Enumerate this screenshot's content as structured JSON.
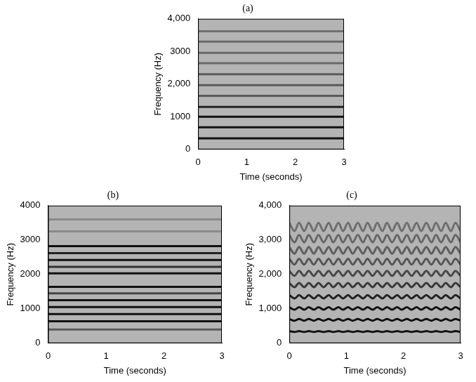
{
  "chart_data": [
    {
      "type": "line",
      "title": "(a)",
      "xlabel": "Time (seconds)",
      "ylabel": "Frequency (Hz)",
      "xlim": [
        0,
        3
      ],
      "xticks": [
        0,
        1,
        2,
        3
      ],
      "ylim": [
        0,
        4000
      ],
      "yticks": [
        0,
        1000,
        {
          "value": 2000,
          "label": "2,000"
        },
        3000,
        {
          "value": 4000,
          "label": "4,000"
        }
      ],
      "grid": false,
      "x": [
        0,
        3
      ],
      "series": [
        {
          "color": "#111111",
          "values": [
            340,
            340
          ]
        },
        {
          "color": "#111111",
          "values": [
            680,
            680
          ]
        },
        {
          "color": "#111111",
          "values": [
            1000,
            1000
          ]
        },
        {
          "color": "#222222",
          "values": [
            1300,
            1300
          ]
        },
        {
          "color": "#5a5a5a",
          "values": [
            1640,
            1640
          ]
        },
        {
          "color": "#5a5a5a",
          "values": [
            1970,
            1970
          ]
        },
        {
          "color": "#5a5a5a",
          "values": [
            2300,
            2300
          ]
        },
        {
          "color": "#6a6a6a",
          "values": [
            2640,
            2640
          ]
        },
        {
          "color": "#6a6a6a",
          "values": [
            2960,
            2960
          ]
        },
        {
          "color": "#6a6a6a",
          "values": [
            3300,
            3300
          ]
        },
        {
          "color": "#707070",
          "values": [
            3620,
            3620
          ]
        }
      ]
    },
    {
      "type": "line",
      "title": "(b)",
      "xlabel": "Time (seconds)",
      "ylabel": "Frequency (Hz)",
      "xlim": [
        0,
        3
      ],
      "xticks": [
        0,
        1,
        2,
        3
      ],
      "ylim": [
        0,
        4000
      ],
      "yticks": [
        0,
        1000,
        2000,
        3000,
        4000
      ],
      "grid": false,
      "x": [
        0,
        3
      ],
      "series": [
        {
          "color": "#5a5a5a",
          "values": [
            400,
            400
          ]
        },
        {
          "color": "#111111",
          "values": [
            640,
            640
          ]
        },
        {
          "color": "#111111",
          "values": [
            850,
            850
          ]
        },
        {
          "color": "#111111",
          "values": [
            1050,
            1050
          ]
        },
        {
          "color": "#111111",
          "values": [
            1250,
            1250
          ]
        },
        {
          "color": "#444444",
          "values": [
            1450,
            1450
          ]
        },
        {
          "color": "#111111",
          "values": [
            1640,
            1640
          ]
        },
        {
          "color": "#111111",
          "values": [
            2030,
            2030
          ]
        },
        {
          "color": "#333333",
          "values": [
            2220,
            2220
          ]
        },
        {
          "color": "#111111",
          "values": [
            2420,
            2420
          ]
        },
        {
          "color": "#222222",
          "values": [
            2620,
            2620
          ]
        },
        {
          "color": "#111111",
          "values": [
            2820,
            2820
          ]
        },
        {
          "color": "#8a8a8a",
          "values": [
            3250,
            3250
          ]
        },
        {
          "color": "#8a8a8a",
          "values": [
            3600,
            3600
          ]
        }
      ]
    },
    {
      "type": "line",
      "title": "(c)",
      "xlabel": "Time (seconds)",
      "ylabel": "Frequency (Hz)",
      "xlim": [
        0,
        3
      ],
      "xticks": [
        0,
        1,
        2,
        3
      ],
      "ylim": [
        0,
        4000
      ],
      "yticks": [
        0,
        {
          "value": 1000,
          "label": "1,000"
        },
        {
          "value": 2000,
          "label": "2,000"
        },
        {
          "value": 3000,
          "label": "3,000"
        },
        {
          "value": 4000,
          "label": "4,000"
        }
      ],
      "grid": false,
      "x": [
        0,
        0.09,
        0.17,
        0.26,
        0.34,
        0.43,
        0.51,
        0.6,
        0.69,
        0.77,
        0.86,
        0.94,
        1.03,
        1.11,
        1.2,
        1.29,
        1.37,
        1.46,
        1.54,
        1.63,
        1.71,
        1.8,
        1.89,
        1.97,
        2.06,
        2.14,
        2.23,
        2.31,
        2.4,
        2.49,
        2.57,
        2.66,
        2.74,
        2.83,
        2.91,
        3
      ],
      "series": [
        {
          "color": "#111111",
          "values": [
            352,
            328,
            352,
            328,
            352,
            328,
            352,
            328,
            352,
            328,
            352,
            328,
            352,
            328,
            352,
            328,
            352,
            328,
            352,
            328,
            352,
            328,
            352,
            328,
            352,
            328,
            352,
            328,
            352,
            328,
            352,
            328,
            352,
            328,
            352,
            328
          ]
        },
        {
          "color": "#111111",
          "values": [
            704,
            656,
            704,
            656,
            704,
            656,
            704,
            656,
            704,
            656,
            704,
            656,
            704,
            656,
            704,
            656,
            704,
            656,
            704,
            656,
            704,
            656,
            704,
            656,
            704,
            656,
            704,
            656,
            704,
            656,
            704,
            656,
            704,
            656,
            704,
            656
          ]
        },
        {
          "color": "#111111",
          "values": [
            1046,
            974,
            1046,
            974,
            1046,
            974,
            1046,
            974,
            1046,
            974,
            1046,
            974,
            1046,
            974,
            1046,
            974,
            1046,
            974,
            1046,
            974,
            1046,
            974,
            1046,
            974,
            1046,
            974,
            1046,
            974,
            1046,
            974,
            1046,
            974,
            1046,
            974,
            1046,
            974
          ]
        },
        {
          "color": "#222222",
          "values": [
            1398,
            1302,
            1398,
            1302,
            1398,
            1302,
            1398,
            1302,
            1398,
            1302,
            1398,
            1302,
            1398,
            1302,
            1398,
            1302,
            1398,
            1302,
            1398,
            1302,
            1398,
            1302,
            1398,
            1302,
            1398,
            1302,
            1398,
            1302,
            1398,
            1302,
            1398,
            1302,
            1398,
            1302,
            1398,
            1302
          ]
        },
        {
          "color": "#3a3a3a",
          "values": [
            1750,
            1630,
            1750,
            1630,
            1750,
            1630,
            1750,
            1630,
            1750,
            1630,
            1750,
            1630,
            1750,
            1630,
            1750,
            1630,
            1750,
            1630,
            1750,
            1630,
            1750,
            1630,
            1750,
            1630,
            1750,
            1630,
            1750,
            1630,
            1750,
            1630,
            1750,
            1630,
            1750,
            1630,
            1750,
            1630
          ]
        },
        {
          "color": "#484848",
          "values": [
            2102,
            1958,
            2102,
            1958,
            2102,
            1958,
            2102,
            1958,
            2102,
            1958,
            2102,
            1958,
            2102,
            1958,
            2102,
            1958,
            2102,
            1958,
            2102,
            1958,
            2102,
            1958,
            2102,
            1958,
            2102,
            1958,
            2102,
            1958,
            2102,
            1958,
            2102,
            1958,
            2102,
            1958,
            2102,
            1958
          ]
        },
        {
          "color": "#555555",
          "values": [
            2454,
            2286,
            2454,
            2286,
            2454,
            2286,
            2454,
            2286,
            2454,
            2286,
            2454,
            2286,
            2454,
            2286,
            2454,
            2286,
            2454,
            2286,
            2454,
            2286,
            2454,
            2286,
            2454,
            2286,
            2454,
            2286,
            2454,
            2286,
            2454,
            2286,
            2454,
            2286,
            2454,
            2286,
            2454,
            2286
          ]
        },
        {
          "color": "#5e5e5e",
          "values": [
            2796,
            2604,
            2796,
            2604,
            2796,
            2604,
            2796,
            2604,
            2796,
            2604,
            2796,
            2604,
            2796,
            2604,
            2796,
            2604,
            2796,
            2604,
            2796,
            2604,
            2796,
            2604,
            2796,
            2604,
            2796,
            2604,
            2796,
            2604,
            2796,
            2604,
            2796,
            2604,
            2796,
            2604,
            2796,
            2604
          ]
        },
        {
          "color": "#666666",
          "values": [
            3148,
            2932,
            3148,
            2932,
            3148,
            2932,
            3148,
            2932,
            3148,
            2932,
            3148,
            2932,
            3148,
            2932,
            3148,
            2932,
            3148,
            2932,
            3148,
            2932,
            3148,
            2932,
            3148,
            2932,
            3148,
            2932,
            3148,
            2932,
            3148,
            2932,
            3148,
            2932,
            3148,
            2932,
            3148,
            2932
          ]
        },
        {
          "color": "#6e6e6e",
          "values": [
            3500,
            3260,
            3500,
            3260,
            3500,
            3260,
            3500,
            3260,
            3500,
            3260,
            3500,
            3260,
            3500,
            3260,
            3500,
            3260,
            3500,
            3260,
            3500,
            3260,
            3500,
            3260,
            3500,
            3260,
            3500,
            3260,
            3500,
            3260,
            3500,
            3260,
            3500,
            3260,
            3500,
            3260,
            3500,
            3260
          ]
        }
      ]
    }
  ]
}
